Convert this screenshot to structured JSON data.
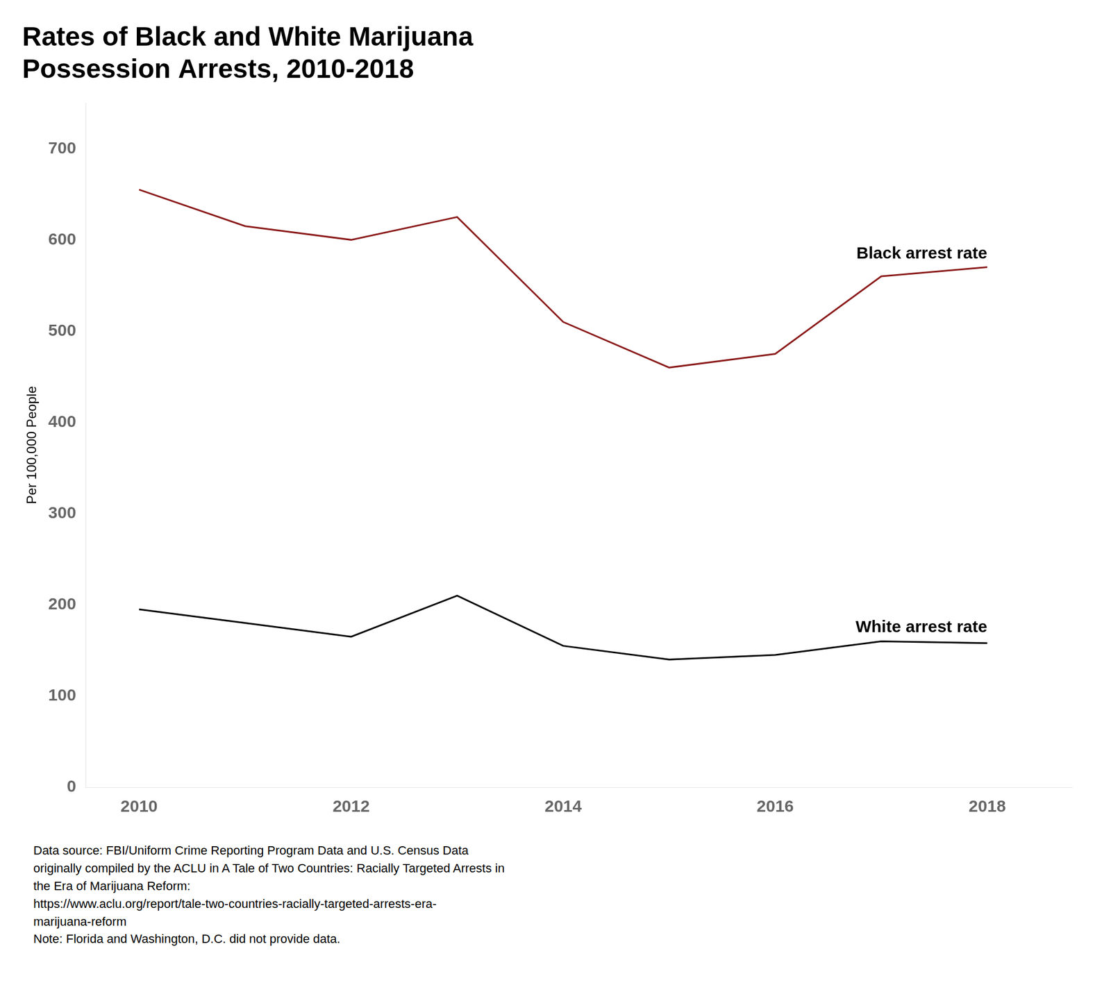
{
  "chart_data": {
    "type": "line",
    "title": "Rates of Black and White Marijuana\nPossession Arrests, 2010-2018",
    "ylabel": "Per 100,000 People",
    "x": [
      2010,
      2011,
      2012,
      2013,
      2014,
      2015,
      2016,
      2017,
      2018
    ],
    "series": [
      {
        "name": "Black arrest rate",
        "color": "#8B1A1A",
        "values": [
          655,
          615,
          600,
          625,
          510,
          460,
          475,
          560,
          570
        ]
      },
      {
        "name": "White arrest rate",
        "color": "#000000",
        "values": [
          195,
          180,
          165,
          210,
          155,
          140,
          145,
          160,
          158
        ]
      }
    ],
    "xlim": [
      2009.5,
      2018.8
    ],
    "xticks": [
      2010,
      2012,
      2014,
      2016,
      2018
    ],
    "ylim": [
      0,
      750
    ],
    "yticks": [
      0,
      100,
      200,
      300,
      400,
      500,
      600,
      700
    ],
    "grid": false,
    "annotations": [
      "Data source: FBI/Uniform Crime Reporting Program Data and U.S. Census Data",
      "originally compiled by the ACLU in A Tale of Two Countries: Racially Targeted Arrests in",
      "the Era of Marijuana Reform:",
      "https://www.aclu.org/report/tale-two-countries-racially-targeted-arrests-era-",
      "marijuana-reform",
      "Note: Florida and Washington, D.C. did not provide data."
    ]
  }
}
